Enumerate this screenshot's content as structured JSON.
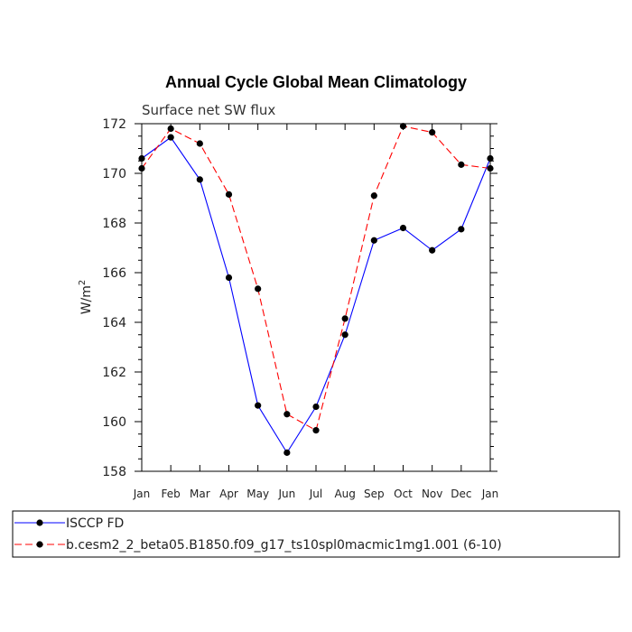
{
  "chart_data": {
    "type": "line",
    "title": "Annual Cycle Global Mean Climatology",
    "subtitle": "Surface net SW flux",
    "ylabel": "W/m",
    "ylabel_sup": "2",
    "xlabel": "",
    "categories": [
      "Jan",
      "Feb",
      "Mar",
      "Apr",
      "May",
      "Jun",
      "Jul",
      "Aug",
      "Sep",
      "Oct",
      "Nov",
      "Dec",
      "Jan"
    ],
    "ylim": [
      158,
      172
    ],
    "yticks": [
      158,
      160,
      162,
      164,
      166,
      168,
      170,
      172
    ],
    "grid": false,
    "legend_position": "bottom",
    "series": [
      {
        "name": "ISCCP FD",
        "color": "#0000ff",
        "dash": "solid",
        "values": [
          170.6,
          171.45,
          169.75,
          165.8,
          160.65,
          158.75,
          160.6,
          163.5,
          167.3,
          167.8,
          166.9,
          167.75,
          170.6
        ]
      },
      {
        "name": "b.cesm2_2_beta05.B1850.f09_g17_ts10spl0macmic1mg1.001 (6-10)",
        "color": "#ff0000",
        "dash": "dashed",
        "values": [
          170.2,
          171.8,
          171.2,
          169.15,
          165.35,
          160.3,
          159.65,
          164.15,
          169.1,
          171.9,
          171.65,
          170.35,
          170.2
        ]
      }
    ]
  }
}
